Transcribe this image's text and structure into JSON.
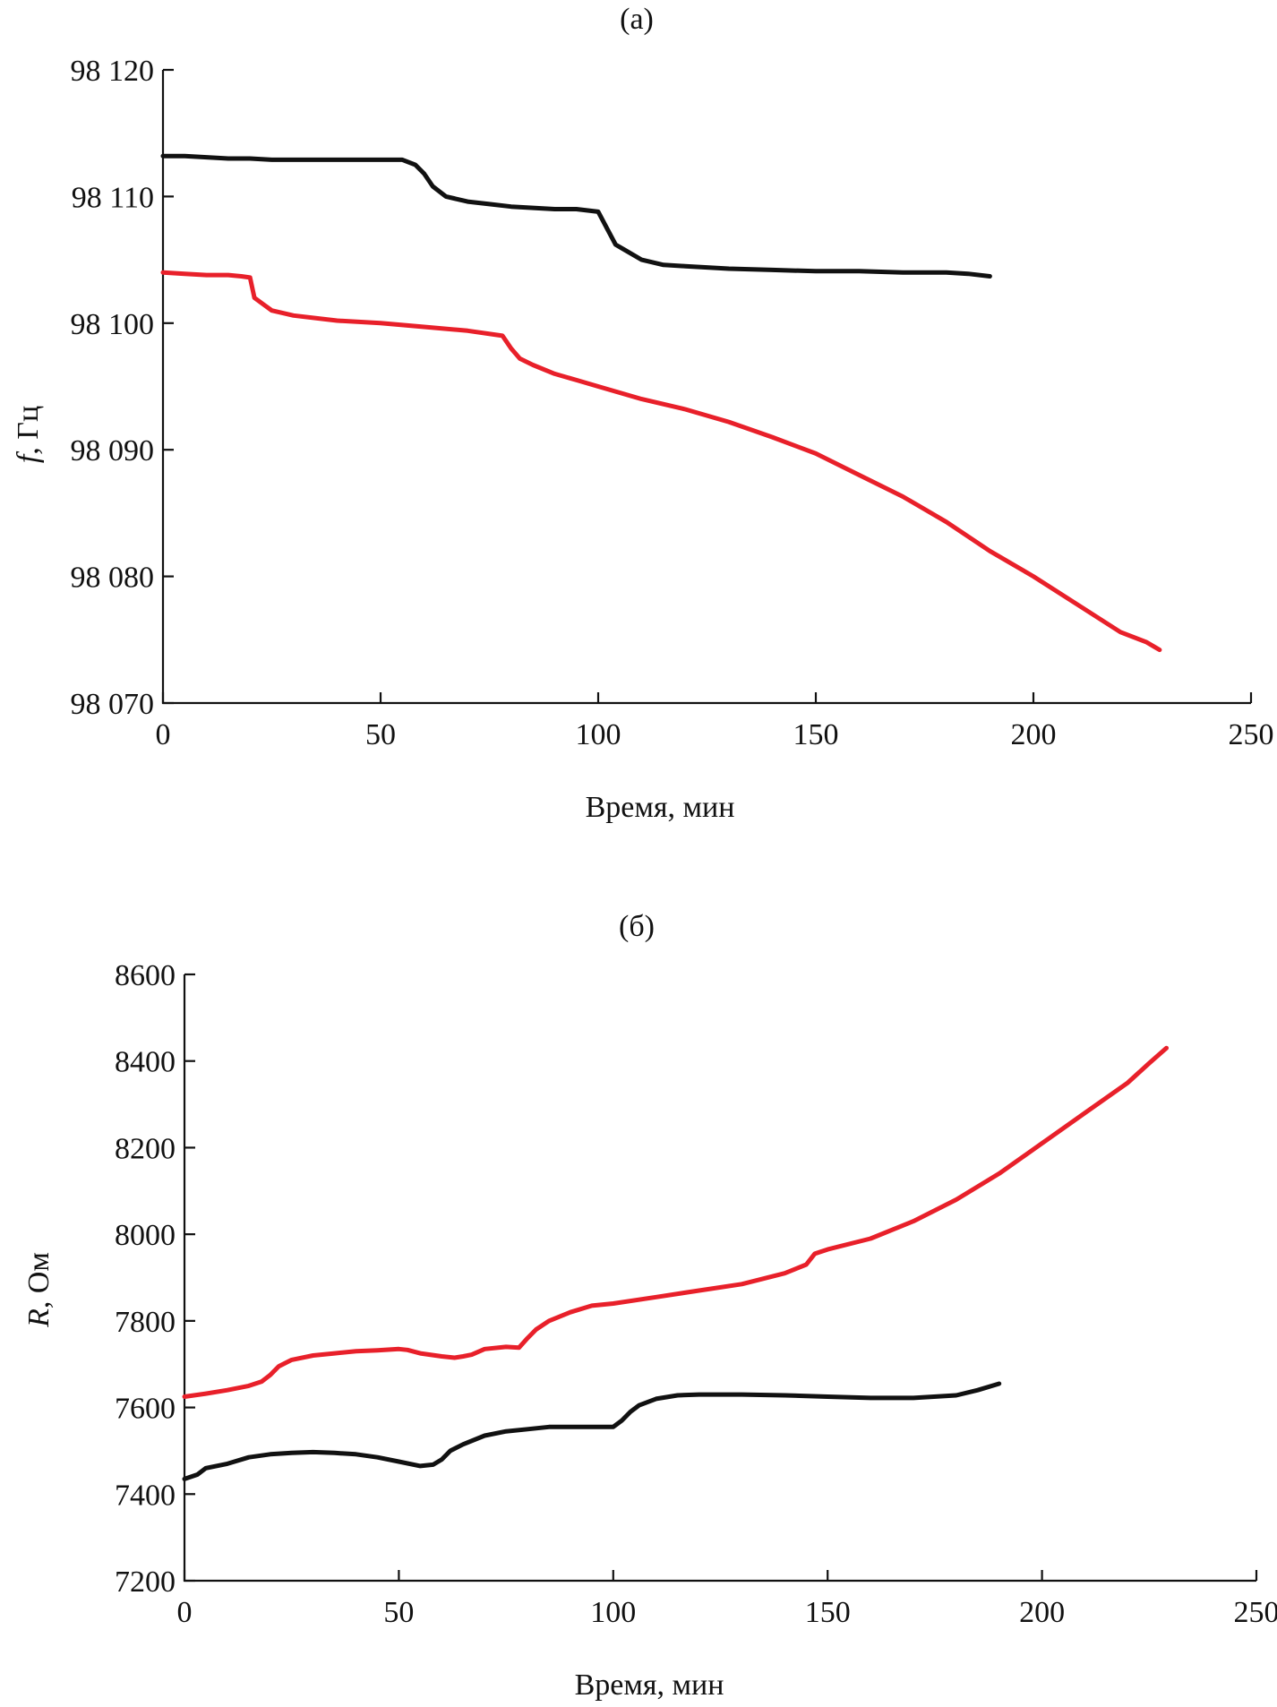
{
  "chart_data": [
    {
      "type": "line",
      "panel_label": "(а)",
      "xlabel": "Время, мин",
      "ylabel_symbol": "f",
      "ylabel_unit": ", Гц",
      "xlim": [
        0,
        250
      ],
      "ylim": [
        98070,
        98120
      ],
      "x_ticks": [
        0,
        50,
        100,
        150,
        200,
        250
      ],
      "y_ticks": [
        98070,
        98080,
        98090,
        98100,
        98110,
        98120
      ],
      "x_tick_labels": [
        "0",
        "50",
        "100",
        "150",
        "200",
        "250"
      ],
      "y_tick_labels": [
        "98 070",
        "98 080",
        "98 090",
        "98 100",
        "98 110",
        "98 120"
      ],
      "grid": false,
      "series": [
        {
          "color": "#111111",
          "x": [
            0,
            5,
            10,
            15,
            20,
            25,
            30,
            35,
            40,
            45,
            50,
            55,
            58,
            60,
            62,
            65,
            70,
            75,
            80,
            85,
            90,
            95,
            100,
            102,
            104,
            106,
            110,
            115,
            120,
            130,
            140,
            150,
            160,
            170,
            180,
            185,
            190
          ],
          "y": [
            98113.2,
            98113.2,
            98113.1,
            98113.0,
            98113.0,
            98112.9,
            98112.9,
            98112.9,
            98112.9,
            98112.9,
            98112.9,
            98112.9,
            98112.5,
            98111.8,
            98110.8,
            98110.0,
            98109.6,
            98109.4,
            98109.2,
            98109.1,
            98109.0,
            98109.0,
            98108.8,
            98107.5,
            98106.2,
            98105.8,
            98105.0,
            98104.6,
            98104.5,
            98104.3,
            98104.2,
            98104.1,
            98104.1,
            98104.0,
            98104.0,
            98103.9,
            98103.7
          ]
        },
        {
          "color": "#e8202a",
          "x": [
            0,
            5,
            10,
            15,
            18,
            20,
            21,
            23,
            25,
            30,
            40,
            50,
            60,
            70,
            78,
            80,
            82,
            85,
            90,
            95,
            100,
            110,
            120,
            130,
            140,
            150,
            160,
            170,
            180,
            190,
            200,
            210,
            220,
            226,
            228,
            229
          ],
          "y": [
            98104.0,
            98103.9,
            98103.8,
            98103.8,
            98103.7,
            98103.6,
            98102.0,
            98101.5,
            98101.0,
            98100.6,
            98100.2,
            98100.0,
            98099.7,
            98099.4,
            98099.0,
            98098.0,
            98097.2,
            98096.7,
            98096.0,
            98095.5,
            98095.0,
            98094.0,
            98093.2,
            98092.2,
            98091.0,
            98089.7,
            98088.0,
            98086.3,
            98084.3,
            98082.0,
            98080.0,
            98077.8,
            98075.6,
            98074.8,
            98074.4,
            98074.2
          ]
        }
      ]
    },
    {
      "type": "line",
      "panel_label": "(б)",
      "xlabel": "Время, мин",
      "ylabel_symbol": "R",
      "ylabel_unit": ", Ом",
      "xlim": [
        0,
        250
      ],
      "ylim": [
        7200,
        8600
      ],
      "x_ticks": [
        0,
        50,
        100,
        150,
        200,
        250
      ],
      "y_ticks": [
        7200,
        7400,
        7600,
        7800,
        8000,
        8200,
        8400,
        8600
      ],
      "x_tick_labels": [
        "0",
        "50",
        "100",
        "150",
        "200",
        "250"
      ],
      "y_tick_labels": [
        "7200",
        "7400",
        "7600",
        "7800",
        "8000",
        "8200",
        "8400",
        "8600"
      ],
      "grid": false,
      "series": [
        {
          "color": "#e8202a",
          "x": [
            0,
            5,
            10,
            15,
            18,
            20,
            22,
            25,
            30,
            35,
            40,
            45,
            50,
            52,
            55,
            60,
            63,
            65,
            67,
            70,
            75,
            78,
            80,
            82,
            85,
            90,
            95,
            100,
            110,
            120,
            130,
            140,
            145,
            147,
            150,
            160,
            170,
            180,
            190,
            200,
            210,
            220,
            225,
            229
          ],
          "y": [
            7625,
            7632,
            7640,
            7650,
            7660,
            7675,
            7695,
            7710,
            7720,
            7725,
            7730,
            7732,
            7735,
            7733,
            7725,
            7718,
            7715,
            7718,
            7722,
            7735,
            7740,
            7738,
            7760,
            7780,
            7800,
            7820,
            7835,
            7840,
            7855,
            7870,
            7885,
            7910,
            7930,
            7955,
            7965,
            7990,
            8030,
            8080,
            8140,
            8210,
            8280,
            8350,
            8395,
            8430
          ]
        },
        {
          "color": "#111111",
          "x": [
            0,
            3,
            5,
            10,
            15,
            20,
            25,
            30,
            35,
            40,
            45,
            50,
            55,
            58,
            60,
            62,
            65,
            70,
            75,
            80,
            85,
            90,
            95,
            100,
            102,
            104,
            106,
            110,
            115,
            120,
            130,
            140,
            150,
            160,
            170,
            180,
            185,
            190
          ],
          "y": [
            7435,
            7445,
            7460,
            7470,
            7485,
            7492,
            7495,
            7497,
            7495,
            7492,
            7485,
            7475,
            7465,
            7468,
            7480,
            7500,
            7515,
            7535,
            7545,
            7550,
            7555,
            7555,
            7555,
            7555,
            7570,
            7590,
            7605,
            7620,
            7628,
            7630,
            7630,
            7628,
            7625,
            7622,
            7622,
            7628,
            7640,
            7655
          ]
        }
      ]
    }
  ]
}
